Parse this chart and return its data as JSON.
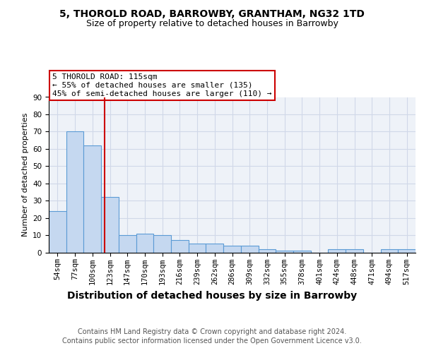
{
  "title1": "5, THOROLD ROAD, BARROWBY, GRANTHAM, NG32 1TD",
  "title2": "Size of property relative to detached houses in Barrowby",
  "xlabel": "Distribution of detached houses by size in Barrowby",
  "ylabel": "Number of detached properties",
  "footer1": "Contains HM Land Registry data © Crown copyright and database right 2024.",
  "footer2": "Contains public sector information licensed under the Open Government Licence v3.0.",
  "categories": [
    "54sqm",
    "77sqm",
    "100sqm",
    "123sqm",
    "147sqm",
    "170sqm",
    "193sqm",
    "216sqm",
    "239sqm",
    "262sqm",
    "286sqm",
    "309sqm",
    "332sqm",
    "355sqm",
    "378sqm",
    "401sqm",
    "424sqm",
    "448sqm",
    "471sqm",
    "494sqm",
    "517sqm"
  ],
  "values": [
    24,
    70,
    62,
    32,
    10,
    11,
    10,
    7,
    5,
    5,
    4,
    4,
    2,
    1,
    1,
    0,
    2,
    2,
    0,
    2,
    2
  ],
  "bar_color": "#c5d8f0",
  "bar_edge_color": "#5b9bd5",
  "bar_width": 1.0,
  "vline_x": 2.7,
  "vline_color": "#cc0000",
  "annotation_line1": "5 THOROLD ROAD: 115sqm",
  "annotation_line2": "← 55% of detached houses are smaller (135)",
  "annotation_line3": "45% of semi-detached houses are larger (110) →",
  "annotation_box_color": "#ffffff",
  "annotation_box_edge": "#cc0000",
  "ylim": [
    0,
    90
  ],
  "yticks": [
    0,
    10,
    20,
    30,
    40,
    50,
    60,
    70,
    80,
    90
  ],
  "grid_color": "#d0d8e8",
  "bg_color": "#eef2f8",
  "title1_fontsize": 10,
  "title2_fontsize": 9,
  "xlabel_fontsize": 10,
  "ylabel_fontsize": 8,
  "tick_fontsize": 7.5,
  "footer_fontsize": 7,
  "annotation_fontsize": 8
}
